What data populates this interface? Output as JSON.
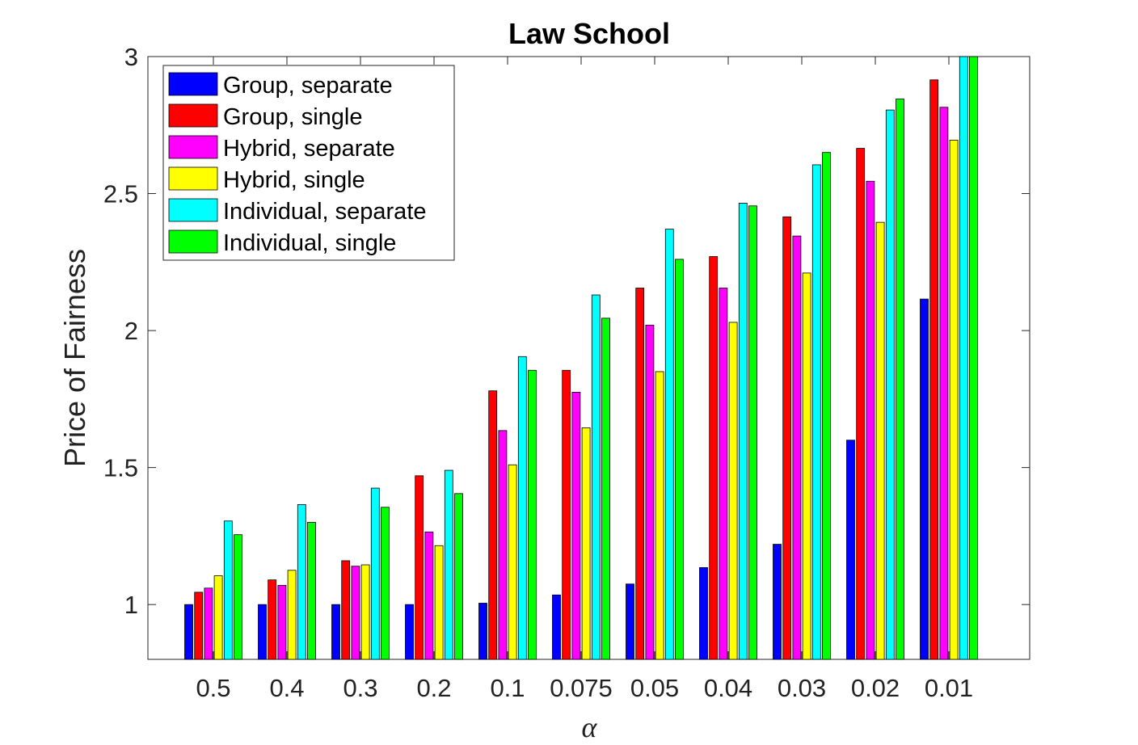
{
  "chart_data": {
    "type": "bar",
    "title": "Law School",
    "xlabel": "α",
    "ylabel": "Price of Fairness",
    "categories": [
      "0.5",
      "0.4",
      "0.3",
      "0.2",
      "0.1",
      "0.075",
      "0.05",
      "0.04",
      "0.03",
      "0.02",
      "0.01"
    ],
    "yticks": [
      "1",
      "1.5",
      "2",
      "2.5",
      "3"
    ],
    "ylim": [
      0.8,
      3.0
    ],
    "legend_position": "top-left",
    "grid": false,
    "series": [
      {
        "name": "Group, separate",
        "color": "#0000FF",
        "values": [
          1.0,
          1.0,
          1.0,
          1.0,
          1.005,
          1.035,
          1.075,
          1.135,
          1.22,
          1.6,
          2.115
        ]
      },
      {
        "name": "Group, single",
        "color": "#FF0000",
        "values": [
          1.045,
          1.09,
          1.16,
          1.47,
          1.78,
          1.855,
          2.155,
          2.27,
          2.415,
          2.665,
          2.915
        ]
      },
      {
        "name": "Hybrid, separate",
        "color": "#FF00FF",
        "values": [
          1.06,
          1.07,
          1.14,
          1.265,
          1.635,
          1.775,
          2.02,
          2.155,
          2.345,
          2.545,
          2.815
        ]
      },
      {
        "name": "Hybrid, single",
        "color": "#FFFF00",
        "values": [
          1.105,
          1.125,
          1.145,
          1.215,
          1.51,
          1.645,
          1.85,
          2.03,
          2.21,
          2.395,
          2.695
        ]
      },
      {
        "name": "Individual, separate",
        "color": "#00FFFF",
        "values": [
          1.305,
          1.365,
          1.425,
          1.49,
          1.905,
          2.13,
          2.37,
          2.465,
          2.605,
          2.805,
          3.0
        ]
      },
      {
        "name": "Individual, single",
        "color": "#00FF00",
        "values": [
          1.255,
          1.3,
          1.355,
          1.405,
          1.855,
          2.045,
          2.26,
          2.455,
          2.65,
          2.845,
          3.0
        ]
      }
    ]
  }
}
